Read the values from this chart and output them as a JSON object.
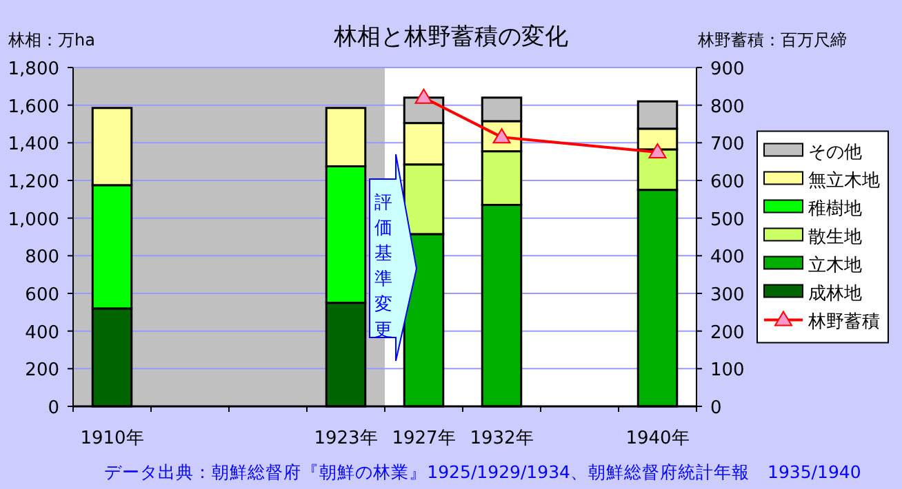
{
  "chart_data": {
    "type": "bar",
    "stacked": true,
    "title": "林相と林野蓄積の変化",
    "ylabel": "林相：万ha",
    "y2label": "林野蓄積：百万尺締",
    "categories": [
      "1910年",
      null,
      null,
      "1923年",
      "1927年",
      "1932年",
      null,
      "1940年"
    ],
    "series": [
      {
        "name": "成林地",
        "color": "#006400",
        "values": [
          520,
          null,
          null,
          550,
          null,
          null,
          null,
          null
        ]
      },
      {
        "name": "立木地",
        "color": "#00b000",
        "values": [
          null,
          null,
          null,
          null,
          915,
          1070,
          null,
          1150
        ]
      },
      {
        "name": "散生地",
        "color": "#ccff66",
        "values": [
          null,
          null,
          null,
          null,
          370,
          285,
          null,
          215
        ]
      },
      {
        "name": "稚樹地",
        "color": "#00ff00",
        "values": [
          655,
          null,
          null,
          725,
          null,
          null,
          null,
          null
        ]
      },
      {
        "name": "無立木地",
        "color": "#ffff99",
        "values": [
          410,
          null,
          null,
          310,
          220,
          160,
          null,
          110
        ]
      },
      {
        "name": "その他",
        "color": "#c0c0c0",
        "values": [
          null,
          null,
          null,
          null,
          135,
          125,
          null,
          145
        ]
      },
      {
        "name": "林野蓄積",
        "type": "line",
        "axis": "y2",
        "color": "#ff0000",
        "marker": "triangle",
        "values": [
          null,
          null,
          null,
          null,
          820,
          715,
          null,
          675
        ]
      }
    ],
    "ylim": [
      0,
      1800
    ],
    "yticks": [
      0,
      200,
      400,
      600,
      800,
      {
        "value": 1000,
        "label": "1,000"
      },
      {
        "value": 1200,
        "label": "1,200"
      },
      {
        "value": 1400,
        "label": "1,400"
      },
      {
        "value": 1600,
        "label": "1,600"
      },
      {
        "value": 1800,
        "label": "1,800"
      }
    ],
    "y2lim": [
      0,
      900
    ],
    "y2ticks": [
      0,
      100,
      200,
      300,
      400,
      500,
      600,
      700,
      800,
      900
    ],
    "grid": "y",
    "legend": "right",
    "annotations": [
      "評価基準変更",
      "データ出典：朝鮮総督府『朝鮮の林業』1925/1929/1934、朝鮮総督府統計年報　1935/1940"
    ]
  }
}
